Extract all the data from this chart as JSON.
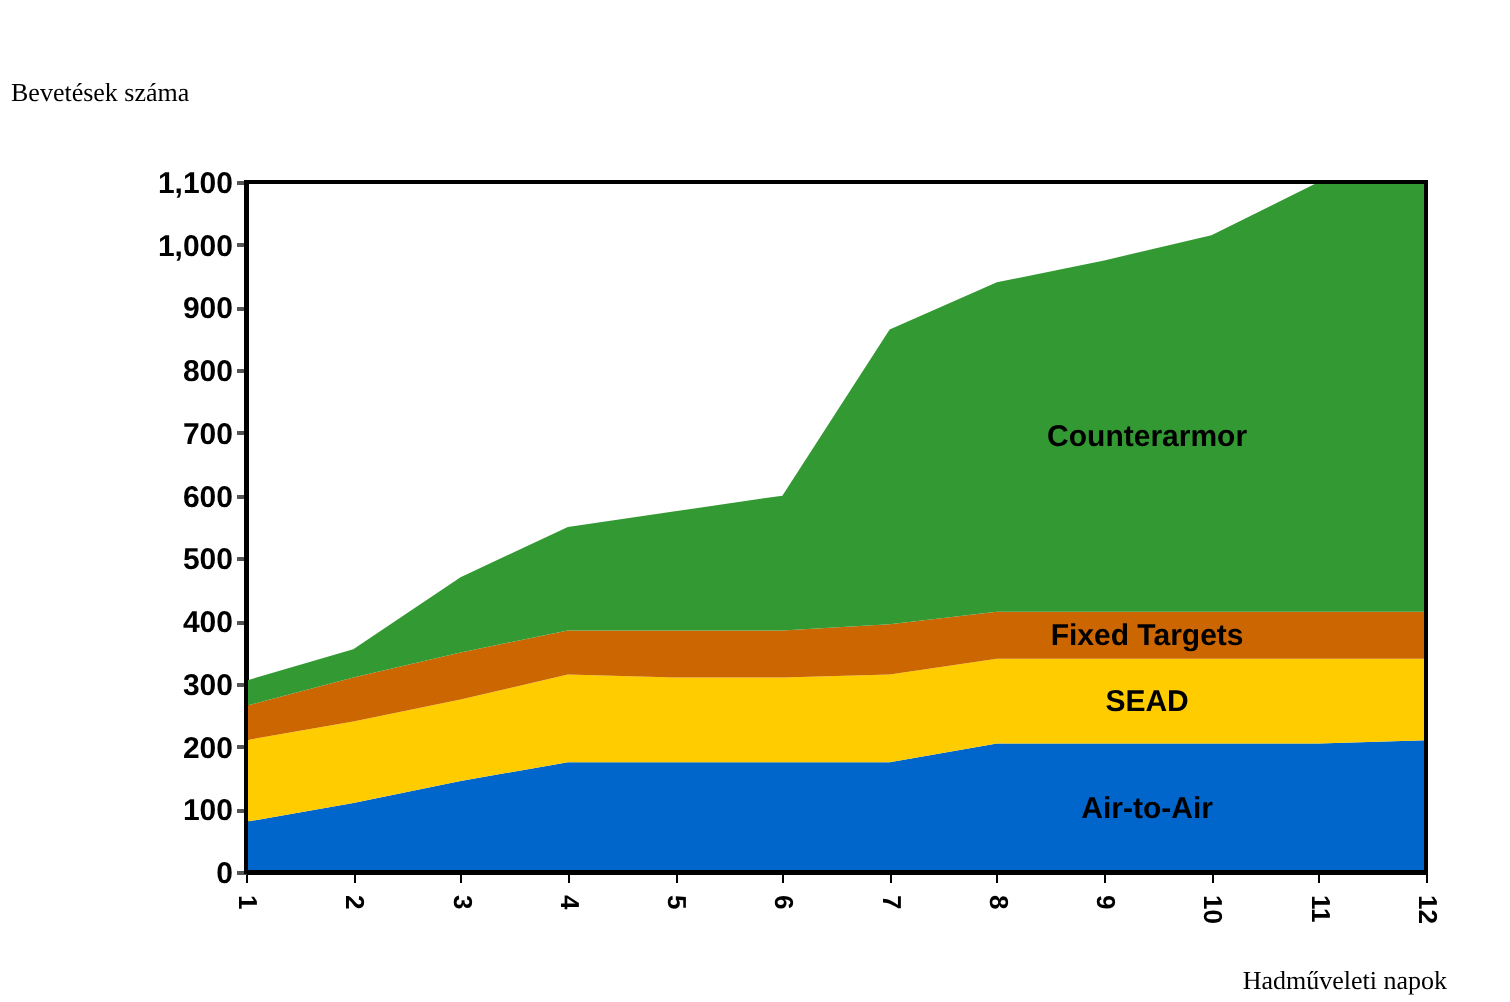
{
  "chart_data": {
    "type": "area",
    "stacked": true,
    "xlabel": "Hadműveleti napok",
    "ylabel": "Bevetések száma",
    "x": [
      1,
      2,
      3,
      4,
      5,
      6,
      7,
      8,
      9,
      10,
      11,
      12
    ],
    "series": [
      {
        "name": "Air-to-Air",
        "color": "#0066cc",
        "values": [
          80,
          110,
          145,
          175,
          175,
          175,
          175,
          205,
          205,
          205,
          205,
          210
        ]
      },
      {
        "name": "SEAD",
        "color": "#ffcc00",
        "values": [
          130,
          130,
          130,
          140,
          135,
          135,
          140,
          135,
          135,
          135,
          135,
          130
        ]
      },
      {
        "name": "Fixed Targets",
        "color": "#cc6600",
        "values": [
          55,
          70,
          75,
          70,
          75,
          75,
          80,
          75,
          75,
          75,
          75,
          75
        ]
      },
      {
        "name": "Counterarmor",
        "color": "#339933",
        "values": [
          40,
          45,
          120,
          165,
          190,
          215,
          470,
          525,
          560,
          600,
          685,
          685
        ]
      }
    ],
    "xlim": [
      1,
      12
    ],
    "xticks": [
      1,
      2,
      3,
      4,
      5,
      6,
      7,
      8,
      9,
      10,
      11,
      12
    ],
    "ylim": [
      0,
      1100
    ],
    "yticks": [
      0,
      100,
      200,
      300,
      400,
      500,
      600,
      700,
      800,
      900,
      {
        "value": 1000,
        "label": "1,000"
      },
      {
        "value": 1100,
        "label": "1,100"
      }
    ],
    "grid": false
  }
}
